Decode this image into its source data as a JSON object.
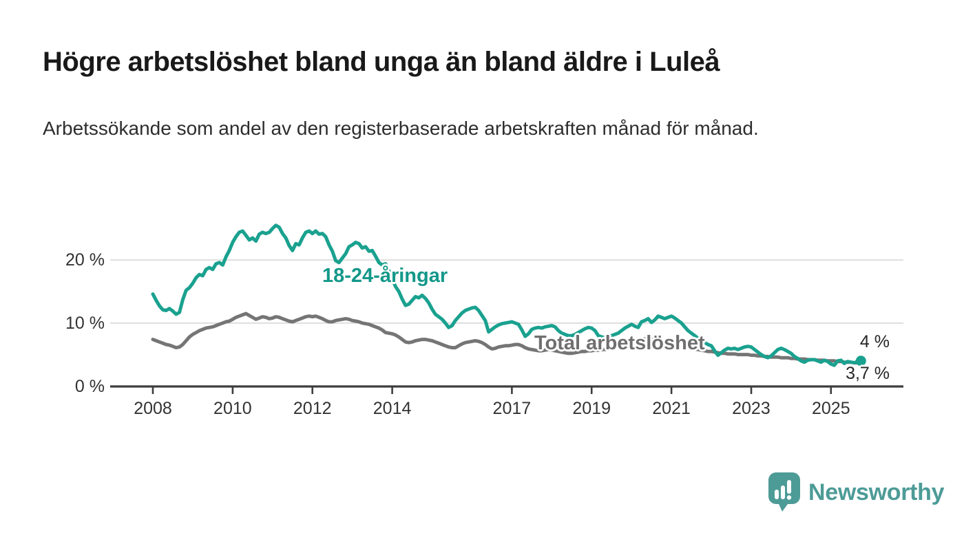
{
  "header": {
    "title": "Högre arbetslöshet bland unga än bland äldre i Luleå",
    "subtitle": "Arbetssökande som andel av den registerbaserade arbetskraften månad för månad."
  },
  "chart_data": {
    "type": "line",
    "title": "Högre arbetslöshet bland unga än bland äldre i Luleå",
    "subtitle": "Arbetssökande som andel av den registerbaserade arbetskraften månad för månad.",
    "x_unit": "month",
    "x_start": "2008-01",
    "x_end": "2025-10",
    "ylim": [
      0,
      27
    ],
    "grid": "horizontal-only",
    "colors": {
      "youth": "#1aa18f",
      "total": "#757575",
      "grid": "#d8d8d8",
      "axis": "#3d3d3d",
      "tick_text": "#333333"
    },
    "y_ticks": [
      {
        "value": 0,
        "label": "0 %"
      },
      {
        "value": 10,
        "label": "10 %"
      },
      {
        "value": 20,
        "label": "20 %"
      }
    ],
    "x_ticks": [
      {
        "year": 2008,
        "label": "2008"
      },
      {
        "year": 2010,
        "label": "2010"
      },
      {
        "year": 2012,
        "label": "2012"
      },
      {
        "year": 2014,
        "label": "2014"
      },
      {
        "year": 2017,
        "label": "2017"
      },
      {
        "year": 2019,
        "label": "2019"
      },
      {
        "year": 2021,
        "label": "2021"
      },
      {
        "year": 2023,
        "label": "2023"
      },
      {
        "year": 2025,
        "label": "2025"
      }
    ],
    "series": [
      {
        "name": "18-24-åringar",
        "color": "#1aa18f",
        "end_dot": true,
        "values": [
          14.6,
          13.6,
          12.7,
          12.1,
          12.0,
          12.3,
          11.9,
          11.4,
          11.7,
          13.7,
          15.2,
          15.6,
          16.3,
          17.2,
          17.7,
          17.5,
          18.5,
          18.8,
          18.5,
          19.4,
          19.6,
          19.2,
          20.5,
          21.5,
          22.8,
          23.7,
          24.4,
          24.6,
          23.9,
          23.2,
          23.5,
          23.0,
          24.1,
          24.4,
          24.2,
          24.4,
          25.0,
          25.5,
          25.2,
          24.2,
          23.5,
          22.3,
          21.5,
          22.6,
          22.4,
          23.5,
          24.4,
          24.6,
          24.2,
          24.6,
          24.1,
          24.2,
          23.7,
          22.4,
          21.4,
          19.9,
          19.6,
          20.3,
          21.0,
          22.1,
          22.4,
          22.8,
          22.6,
          21.9,
          22.1,
          21.4,
          21.5,
          20.6,
          19.6,
          19.2,
          19.4,
          18.3,
          17.0,
          15.8,
          15.0,
          13.8,
          12.8,
          13.0,
          13.6,
          14.2,
          14.0,
          14.4,
          13.9,
          13.2,
          12.2,
          11.4,
          11.0,
          10.6,
          10.0,
          9.3,
          9.6,
          10.4,
          11.0,
          11.6,
          12.0,
          12.2,
          12.4,
          12.5,
          12.0,
          11.2,
          10.4,
          8.6,
          9.0,
          9.4,
          9.7,
          9.9,
          10.0,
          10.1,
          10.2,
          10.0,
          9.8,
          8.9,
          7.9,
          8.3,
          9.0,
          9.2,
          9.3,
          9.2,
          9.4,
          9.5,
          9.6,
          9.4,
          8.8,
          8.4,
          8.2,
          8.0,
          8.0,
          8.2,
          8.5,
          8.8,
          9.1,
          9.3,
          9.2,
          8.8,
          8.0,
          7.8,
          7.7,
          7.8,
          8.0,
          8.2,
          8.4,
          8.8,
          9.2,
          9.5,
          9.8,
          9.5,
          9.3,
          10.2,
          10.4,
          10.7,
          10.1,
          10.5,
          11.1,
          10.9,
          10.7,
          10.9,
          11.1,
          10.8,
          10.4,
          10.0,
          9.4,
          8.8,
          8.4,
          8.0,
          7.6,
          7.2,
          6.9,
          6.6,
          6.4,
          5.6,
          4.9,
          5.3,
          5.7,
          6.0,
          5.9,
          6.0,
          5.8,
          6.0,
          6.2,
          6.3,
          6.2,
          5.8,
          5.4,
          5.0,
          4.7,
          4.5,
          4.8,
          5.3,
          5.8,
          6.0,
          5.8,
          5.5,
          5.2,
          4.7,
          4.4,
          4.0,
          3.8,
          4.1,
          4.2,
          4.2,
          4.0,
          3.8,
          4.1,
          3.9,
          3.5,
          3.3,
          4.0,
          4.1,
          3.6,
          3.9,
          3.8,
          3.7,
          3.9,
          4.0
        ]
      },
      {
        "name": "Total arbetslöshet",
        "color": "#757575",
        "end_dot": false,
        "values": [
          7.4,
          7.2,
          7.0,
          6.8,
          6.6,
          6.5,
          6.3,
          6.1,
          6.2,
          6.6,
          7.2,
          7.8,
          8.2,
          8.5,
          8.8,
          9.0,
          9.2,
          9.3,
          9.4,
          9.6,
          9.8,
          10.0,
          10.2,
          10.3,
          10.6,
          10.9,
          11.1,
          11.3,
          11.5,
          11.2,
          10.9,
          10.6,
          10.8,
          11.0,
          10.9,
          10.7,
          10.8,
          11.0,
          10.9,
          10.7,
          10.5,
          10.3,
          10.2,
          10.4,
          10.6,
          10.8,
          11.0,
          11.1,
          11.0,
          11.1,
          10.9,
          10.7,
          10.4,
          10.2,
          10.2,
          10.4,
          10.5,
          10.6,
          10.7,
          10.6,
          10.4,
          10.3,
          10.2,
          10.0,
          9.9,
          9.8,
          9.6,
          9.4,
          9.2,
          8.9,
          8.5,
          8.4,
          8.3,
          8.1,
          7.8,
          7.4,
          7.0,
          6.9,
          7.0,
          7.2,
          7.3,
          7.4,
          7.4,
          7.3,
          7.2,
          7.0,
          6.8,
          6.6,
          6.4,
          6.2,
          6.1,
          6.1,
          6.4,
          6.7,
          6.9,
          7.0,
          7.1,
          7.2,
          7.1,
          6.9,
          6.6,
          6.2,
          5.9,
          6.0,
          6.2,
          6.3,
          6.4,
          6.4,
          6.5,
          6.6,
          6.6,
          6.4,
          6.1,
          5.9,
          5.8,
          5.7,
          5.6,
          5.6,
          5.7,
          5.8,
          5.7,
          5.6,
          5.5,
          5.4,
          5.3,
          5.2,
          5.2,
          5.3,
          5.4,
          5.5,
          5.5,
          5.6,
          5.6,
          5.7,
          5.7,
          5.8,
          5.8,
          5.9,
          6.0,
          6.1,
          6.2,
          6.3,
          6.4,
          6.5,
          6.7,
          6.9,
          7.1,
          7.4,
          7.5,
          7.5,
          7.4,
          7.3,
          7.2,
          7.1,
          7.0,
          6.9,
          6.9,
          6.8,
          6.7,
          6.6,
          6.4,
          6.2,
          6.1,
          5.9,
          5.8,
          5.7,
          5.6,
          5.5,
          5.5,
          5.4,
          5.3,
          5.2,
          5.2,
          5.1,
          5.1,
          5.1,
          5.0,
          5.0,
          5.0,
          5.0,
          4.9,
          4.9,
          4.8,
          4.8,
          4.7,
          4.7,
          4.6,
          4.6,
          4.6,
          4.5,
          4.5,
          4.5,
          4.4,
          4.4,
          4.3,
          4.3,
          4.3,
          4.2,
          4.2,
          4.2,
          4.1,
          4.1,
          4.1,
          4.0,
          4.0,
          4.0,
          3.9,
          3.9,
          3.8,
          3.8,
          3.8,
          3.7,
          3.7,
          3.7
        ]
      }
    ],
    "end_labels": [
      {
        "text": "4 %",
        "series": "18-24-åringar"
      },
      {
        "text": "3,7 %",
        "series": "Total arbetslöshet"
      }
    ],
    "legend_position": "inline-annotations"
  },
  "annotations": {
    "youth_color": "#13988a",
    "total_color": "#6f6f6f"
  },
  "footer": {
    "brand": "Newsworthy",
    "brand_color": "#4d9b97",
    "logo": "newsworthy-speech-bubble-bar-chart-icon"
  }
}
